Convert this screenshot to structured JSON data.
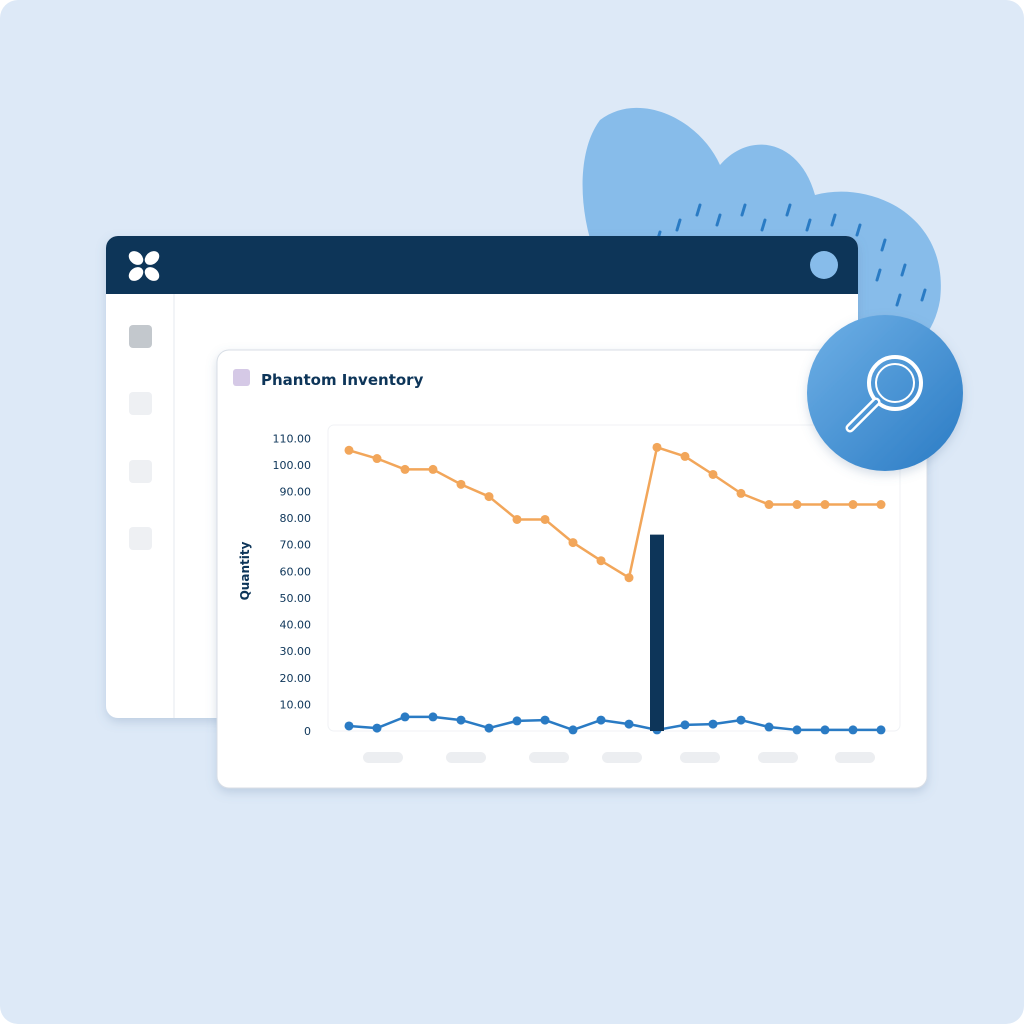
{
  "chart_data": {
    "type": "line",
    "title": "Phantom Inventory",
    "y_label": "Quantity",
    "categories": [
      null,
      null,
      null,
      null,
      null,
      null,
      null,
      null,
      null,
      null,
      null,
      null,
      null,
      null,
      null,
      null,
      null,
      null,
      null,
      null
    ],
    "series": [
      {
        "type": "line",
        "color": "#f2a65a",
        "values": [
          105.5,
          102.4,
          98.3,
          98.3,
          92.7,
          88.1,
          79.5,
          79.5,
          70.8,
          64.0,
          57.6,
          106.6,
          103.2,
          96.4,
          89.3,
          85.1,
          85.1,
          85.1,
          85.1,
          85.1
        ]
      },
      {
        "type": "line",
        "color": "#2a7bc4",
        "values": [
          1.9,
          1.1,
          5.3,
          5.3,
          4.1,
          1.1,
          3.8,
          4.1,
          0.4,
          4.1,
          2.6,
          0.4,
          2.3,
          2.6,
          4.1,
          1.5,
          0.4,
          0.4,
          0.4,
          0.4
        ]
      },
      {
        "type": "bar",
        "color": "#0d3559",
        "values": [
          null,
          null,
          null,
          null,
          null,
          null,
          null,
          null,
          null,
          null,
          null,
          73.8,
          null,
          null,
          null,
          null,
          null,
          null,
          null,
          null
        ]
      }
    ],
    "ylim": [
      0,
      115
    ],
    "yticks": [
      0,
      {
        "value": 10,
        "label": "10.00"
      },
      {
        "value": 20,
        "label": "20.00"
      },
      {
        "value": 30,
        "label": "30.00"
      },
      {
        "value": 40,
        "label": "40.00"
      },
      {
        "value": 50,
        "label": "50.00"
      },
      {
        "value": 60,
        "label": "60.00"
      },
      {
        "value": 70,
        "label": "70.00"
      },
      {
        "value": 80,
        "label": "80.00"
      },
      {
        "value": 90,
        "label": "90.00"
      },
      {
        "value": 100,
        "label": "100.00"
      },
      {
        "value": 110,
        "label": "110.00"
      }
    ],
    "grid": false
  }
}
